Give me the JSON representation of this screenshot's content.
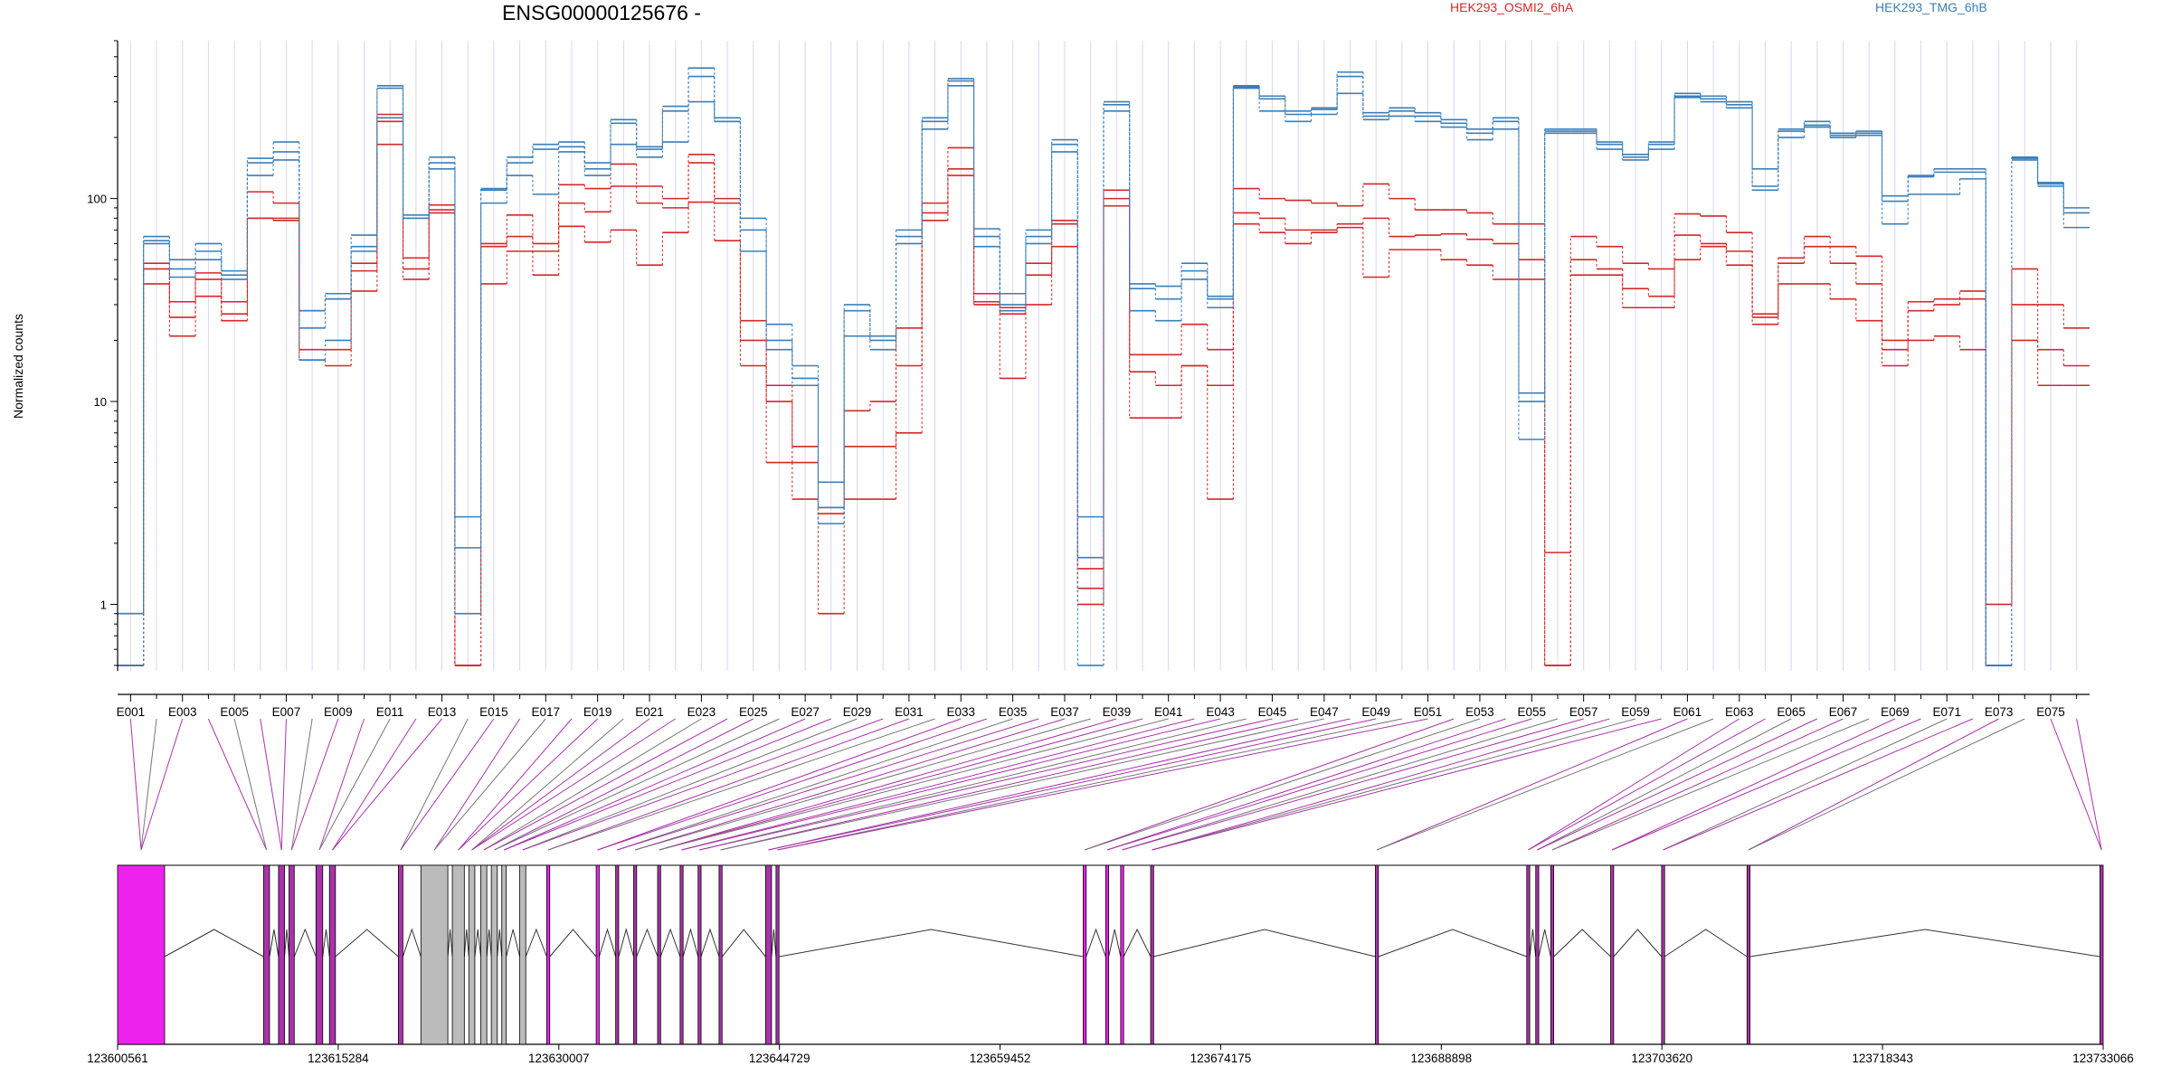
{
  "chart_data": {
    "type": "line",
    "title": "ENSG00000125676 -",
    "xlabel": "",
    "ylabel": "Normalized counts",
    "yscale": "log",
    "ylim": [
      0.47,
      600
    ],
    "yticks": [
      1,
      10,
      100
    ],
    "ytick_labels": [
      "1",
      "10",
      "100"
    ],
    "grid": "faint vertical lines at each exon",
    "legend_position": "top",
    "colors": {
      "HEK293_OSMI2_6hA": "#d62728",
      "HEK293_TMG_6hB": "#3a7fb9"
    },
    "exon_labels": [
      "E001",
      "E003",
      "E005",
      "E007",
      "E009",
      "E011",
      "E013",
      "E015",
      "E017",
      "E019",
      "E021",
      "E023",
      "E025",
      "E027",
      "E029",
      "E031",
      "E033",
      "E035",
      "E037",
      "E039",
      "E041",
      "E043",
      "E045",
      "E047",
      "E049",
      "E051",
      "E053",
      "E055",
      "E057",
      "E059",
      "E061",
      "E063",
      "E065",
      "E067",
      "E069",
      "E071",
      "E073",
      "E075"
    ],
    "genome_ticks": [
      "123600561",
      "123615284",
      "123630007",
      "123644729",
      "123659452",
      "123674175",
      "123688898",
      "123703620",
      "123718343",
      "123733066"
    ],
    "series": [
      {
        "name": "HEK293_OSMI2_6hA",
        "values": [
          0.5,
          48,
          31,
          43,
          31,
          108,
          95,
          28,
          32,
          48,
          260,
          51,
          93,
          0.5,
          60,
          83,
          60,
          117,
          112,
          148,
          115,
          100,
          165,
          100,
          25,
          12,
          6,
          3,
          9,
          10,
          23,
          95,
          178,
          34,
          29,
          48,
          78,
          1.5,
          110,
          17,
          17,
          24,
          18,
          112,
          100,
          98,
          95,
          92,
          118,
          100,
          88,
          88,
          85,
          75,
          75,
          1.8,
          65,
          58,
          48,
          45,
          84,
          82,
          68,
          27,
          51,
          65,
          58,
          52,
          20,
          31,
          32,
          35,
          1,
          45,
          30,
          23
        ]
      },
      {
        "name": "HEK293_OSMI2_6hA",
        "values": [
          0.5,
          45,
          26,
          40,
          27,
          80,
          80,
          18,
          18,
          44,
          240,
          45,
          88,
          0.5,
          58,
          65,
          55,
          95,
          86,
          115,
          95,
          90,
          150,
          95,
          20,
          10,
          5,
          2.8,
          6,
          6,
          15,
          85,
          140,
          31,
          27,
          42,
          75,
          1.2,
          100,
          14,
          12,
          15,
          12,
          85,
          80,
          70,
          70,
          75,
          80,
          65,
          66,
          67,
          63,
          60,
          50,
          0.5,
          50,
          45,
          36,
          33,
          66,
          60,
          55,
          26,
          48,
          58,
          48,
          38,
          18,
          28,
          30,
          32,
          0.5,
          30,
          18,
          15
        ]
      },
      {
        "name": "HEK293_OSMI2_6hA",
        "values": [
          0.5,
          38,
          21,
          33,
          25,
          80,
          78,
          16,
          15,
          35,
          185,
          40,
          85,
          0.5,
          38,
          55,
          42,
          73,
          61,
          70,
          47,
          68,
          96,
          62,
          15,
          5,
          3.3,
          0.9,
          3.3,
          3.3,
          7,
          78,
          130,
          30,
          13,
          30,
          58,
          1,
          92,
          8.3,
          8.3,
          15,
          3.3,
          75,
          68,
          60,
          68,
          72,
          41,
          56,
          56,
          50,
          47,
          40,
          40,
          0.5,
          42,
          42,
          29,
          29,
          50,
          58,
          47,
          24,
          38,
          38,
          32,
          25,
          15,
          20,
          21,
          18,
          0.5,
          20,
          12,
          12
        ]
      },
      {
        "name": "HEK293_TMG_6hB",
        "values": [
          0.9,
          65,
          50,
          60,
          44,
          158,
          190,
          28,
          34,
          66,
          360,
          83,
          160,
          2.7,
          112,
          160,
          185,
          190,
          150,
          245,
          180,
          285,
          440,
          250,
          80,
          24,
          15,
          4,
          30,
          21,
          70,
          250,
          390,
          71,
          34,
          70,
          195,
          2.7,
          300,
          38,
          37,
          48,
          33,
          360,
          320,
          270,
          280,
          420,
          265,
          280,
          265,
          245,
          220,
          250,
          11,
          220,
          220,
          190,
          165,
          190,
          330,
          320,
          300,
          140,
          220,
          240,
          210,
          215,
          103,
          130,
          140,
          140,
          0.5,
          160,
          120,
          90
        ]
      },
      {
        "name": "HEK293_TMG_6hB",
        "values": [
          0.9,
          62,
          45,
          55,
          42,
          150,
          170,
          23,
          32,
          58,
          350,
          80,
          150,
          1.9,
          110,
          150,
          175,
          180,
          140,
          235,
          175,
          270,
          400,
          240,
          70,
          20,
          13,
          3,
          28,
          20,
          65,
          240,
          380,
          65,
          30,
          65,
          185,
          1.7,
          290,
          36,
          32,
          44,
          32,
          355,
          310,
          260,
          275,
          400,
          255,
          270,
          255,
          235,
          210,
          240,
          10,
          215,
          215,
          185,
          160,
          185,
          320,
          310,
          290,
          115,
          215,
          230,
          205,
          210,
          97,
          128,
          135,
          135,
          0.5,
          158,
          118,
          85
        ]
      },
      {
        "name": "HEK293_TMG_6hB",
        "values": [
          0.5,
          60,
          41,
          50,
          40,
          130,
          155,
          16,
          20,
          55,
          250,
          80,
          140,
          0.9,
          95,
          130,
          105,
          170,
          130,
          185,
          160,
          190,
          300,
          240,
          55,
          18,
          12,
          2.5,
          21,
          18,
          60,
          220,
          360,
          58,
          28,
          60,
          170,
          0.5,
          270,
          28,
          25,
          40,
          29,
          350,
          270,
          240,
          260,
          330,
          245,
          255,
          240,
          225,
          195,
          220,
          6.5,
          210,
          210,
          175,
          155,
          175,
          315,
          300,
          280,
          110,
          200,
          225,
          200,
          205,
          75,
          105,
          105,
          125,
          0.5,
          155,
          115,
          72
        ]
      }
    ]
  }
}
